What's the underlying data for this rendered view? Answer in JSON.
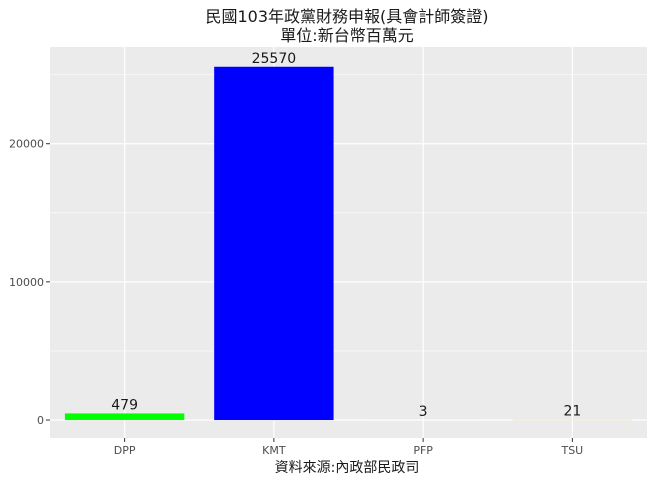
{
  "chart_data": {
    "type": "bar",
    "title": "民國103年政黨財務申報(具會計師簽證)",
    "subtitle": "單位:新台幣百萬元",
    "xlabel": "資料來源:內政部民政司",
    "ylabel": "",
    "categories": [
      "DPP",
      "KMT",
      "PFP",
      "TSU"
    ],
    "values": [
      479,
      25570,
      3,
      21
    ],
    "data_labels": [
      "479",
      "25570",
      "3",
      "21"
    ],
    "bar_colors": [
      "#00ff00",
      "#0000ff",
      "#ffffff",
      "#f5deb3"
    ],
    "ylim": [
      -1300,
      27000
    ],
    "yticks": [
      0,
      10000,
      20000
    ],
    "ytick_labels": [
      "0",
      "10000",
      "20000"
    ],
    "grid": true,
    "legend": "none",
    "panel_background": "#ebebeb",
    "gridline_color": "#ffffff"
  }
}
